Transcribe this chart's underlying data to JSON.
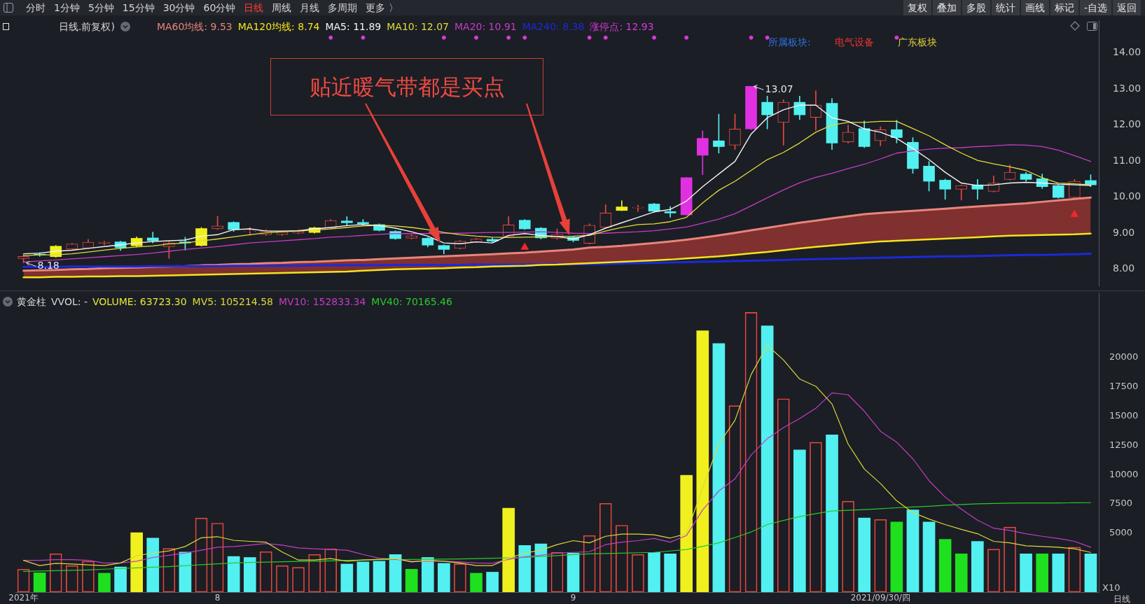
{
  "chart_data": [
    {
      "type": "other",
      "annotations": [
        "分时",
        "1分钟",
        "5分钟",
        "15分钟",
        "30分钟",
        "60分钟",
        "日线",
        "周线",
        "月线",
        "多周期",
        "更多 〉"
      ]
    },
    {
      "type": "other",
      "annotations": [
        "复权",
        "叠加",
        "多股",
        "统计",
        "画线",
        "标记",
        "-自选",
        "返回"
      ]
    },
    {
      "type": "candlestick",
      "title": "日线.前复权)",
      "categories": [
        null,
        null,
        null,
        null,
        null,
        null,
        null,
        null,
        null,
        null,
        null,
        null,
        null,
        null,
        null,
        null,
        null,
        null,
        null,
        null,
        null,
        null,
        null,
        null,
        null,
        null,
        null,
        null,
        null,
        null,
        null,
        null,
        null,
        null,
        null,
        null,
        null,
        null,
        null,
        null,
        null,
        null,
        null,
        null,
        null,
        null,
        null,
        null,
        null,
        null,
        null,
        null,
        null,
        null,
        null,
        null,
        null,
        null,
        null,
        null,
        null,
        null,
        null,
        null,
        null,
        null,
        null
      ],
      "series": [
        {
          "type": "candlestick",
          "color": "#e8483f",
          "colors": [
            "#e8483f",
            "#52f0f0",
            "#f0f01e",
            "#e8483f",
            "#e8483f",
            "#e8483f",
            "#52f0f0",
            "#f0f01e",
            "#52f0f0",
            "#e8483f",
            "#52f0f0",
            "#f0f01e",
            "#e8483f",
            "#52f0f0",
            "#e8483f",
            "#e8483f",
            "#e8483f",
            "#e8483f",
            "#f0f01e",
            "#e8483f",
            "#52f0f0",
            "#52f0f0",
            "#52f0f0",
            "#52f0f0",
            "#e8483f",
            "#52f0f0",
            "#52f0f0",
            "#e8483f",
            "#e8483f",
            "#52f0f0",
            "#e8483f",
            "#52f0f0",
            "#52f0f0",
            "#e8483f",
            "#52f0f0",
            "#e8483f",
            "#e8483f",
            "#f0f01e",
            "#e8483f",
            "#52f0f0",
            "#52f0f0",
            "#e030e0",
            "#e030e0",
            "#52f0f0",
            "#e8483f",
            "#e030e0",
            "#52f0f0",
            "#e8483f",
            "#52f0f0",
            "#e8483f",
            "#52f0f0",
            "#e8483f",
            "#52f0f0",
            "#e8483f",
            "#52f0f0",
            "#52f0f0",
            "#52f0f0",
            "#52f0f0",
            "#e8483f",
            "#52f0f0",
            "#e8483f",
            "#e8483f",
            "#52f0f0",
            "#52f0f0",
            "#52f0f0",
            "#e8483f",
            "#52f0f0"
          ],
          "ohlc": [
            [
              8.3,
              8.4,
              8.18,
              8.36
            ],
            [
              8.42,
              8.46,
              8.36,
              8.4
            ],
            [
              8.35,
              8.66,
              8.33,
              8.64
            ],
            [
              8.56,
              8.72,
              8.55,
              8.7
            ],
            [
              8.59,
              8.83,
              8.58,
              8.75
            ],
            [
              8.72,
              8.78,
              8.68,
              8.75
            ],
            [
              8.76,
              8.78,
              8.52,
              8.6
            ],
            [
              8.65,
              8.9,
              8.62,
              8.86
            ],
            [
              8.87,
              9.03,
              8.73,
              8.79
            ],
            [
              8.63,
              8.76,
              8.3,
              8.73
            ],
            [
              8.76,
              8.89,
              8.53,
              8.73
            ],
            [
              8.66,
              9.16,
              8.64,
              9.13
            ],
            [
              9.12,
              9.47,
              9.1,
              9.2
            ],
            [
              9.3,
              9.32,
              9.05,
              9.1
            ],
            [
              9.05,
              9.16,
              8.94,
              9.06
            ],
            [
              8.96,
              9.1,
              8.94,
              9.06
            ],
            [
              8.96,
              9.06,
              8.94,
              9.03
            ],
            [
              9.0,
              9.09,
              8.98,
              9.06
            ],
            [
              9.02,
              9.17,
              9.0,
              9.15
            ],
            [
              9.14,
              9.38,
              9.12,
              9.35
            ],
            [
              9.34,
              9.46,
              9.21,
              9.29
            ],
            [
              9.3,
              9.38,
              9.22,
              9.26
            ],
            [
              9.24,
              9.26,
              9.06,
              9.08
            ],
            [
              9.05,
              9.07,
              8.83,
              8.85
            ],
            [
              8.86,
              8.96,
              8.84,
              8.93
            ],
            [
              8.86,
              8.88,
              8.62,
              8.67
            ],
            [
              8.66,
              8.68,
              8.43,
              8.55
            ],
            [
              8.58,
              8.8,
              8.56,
              8.78
            ],
            [
              8.76,
              8.86,
              8.74,
              8.84
            ],
            [
              8.83,
              8.87,
              8.76,
              8.78
            ],
            [
              8.92,
              9.46,
              8.9,
              9.23
            ],
            [
              9.36,
              9.38,
              9.1,
              9.12
            ],
            [
              9.14,
              9.16,
              8.84,
              8.87
            ],
            [
              8.86,
              9.12,
              8.83,
              8.97
            ],
            [
              8.89,
              8.92,
              8.76,
              8.8
            ],
            [
              8.72,
              9.26,
              8.7,
              9.22
            ],
            [
              9.16,
              9.79,
              9.15,
              9.56
            ],
            [
              9.63,
              9.9,
              9.62,
              9.73
            ],
            [
              9.7,
              9.78,
              9.6,
              9.72
            ],
            [
              9.81,
              9.83,
              9.58,
              9.61
            ],
            [
              9.6,
              9.74,
              9.44,
              9.56
            ],
            [
              9.51,
              10.55,
              9.5,
              10.54
            ],
            [
              11.16,
              11.84,
              10.62,
              11.63
            ],
            [
              11.56,
              12.3,
              11.22,
              11.4
            ],
            [
              11.44,
              12.3,
              11.32,
              11.89
            ],
            [
              11.89,
              13.07,
              11.87,
              13.07
            ],
            [
              12.63,
              12.8,
              11.89,
              12.28
            ],
            [
              12.07,
              12.7,
              11.44,
              12.63
            ],
            [
              12.63,
              12.8,
              12.15,
              12.28
            ],
            [
              12.21,
              12.95,
              11.85,
              12.55
            ],
            [
              12.6,
              12.73,
              11.32,
              11.5
            ],
            [
              11.53,
              12.0,
              11.5,
              11.8
            ],
            [
              11.9,
              12.11,
              11.37,
              11.4
            ],
            [
              11.56,
              11.95,
              11.42,
              11.87
            ],
            [
              11.87,
              12.13,
              11.5,
              11.65
            ],
            [
              11.52,
              11.65,
              10.66,
              10.79
            ],
            [
              10.86,
              10.99,
              10.17,
              10.44
            ],
            [
              10.47,
              10.5,
              9.94,
              10.22
            ],
            [
              10.22,
              10.34,
              9.92,
              10.32
            ],
            [
              10.34,
              10.49,
              9.94,
              10.22
            ],
            [
              10.16,
              10.59,
              10.14,
              10.39
            ],
            [
              10.49,
              10.89,
              10.47,
              10.69
            ],
            [
              10.64,
              10.69,
              10.44,
              10.49
            ],
            [
              10.51,
              10.64,
              10.24,
              10.29
            ],
            [
              10.32,
              10.34,
              9.97,
              9.99
            ],
            [
              9.99,
              10.49,
              9.97,
              10.44
            ],
            [
              10.46,
              10.62,
              10.29,
              10.34
            ]
          ],
          "value_labels": [
            "8.18",
            null,
            null,
            null,
            null,
            null,
            null,
            null,
            null,
            null,
            null,
            null,
            null,
            null,
            null,
            null,
            null,
            null,
            null,
            null,
            null,
            null,
            null,
            null,
            null,
            null,
            null,
            null,
            null,
            null,
            null,
            null,
            null,
            null,
            null,
            null,
            null,
            null,
            null,
            null,
            null,
            null,
            null,
            null,
            null,
            "13.07",
            null,
            null,
            null,
            null,
            null,
            null,
            null,
            null,
            null,
            null,
            null,
            null,
            null,
            null,
            null,
            null,
            null,
            null,
            null,
            null,
            null
          ]
        },
        {
          "type": "area",
          "name": "MA60均线: 9.53",
          "color": "#e8857c",
          "values": [
            7.96,
            7.97,
            7.98,
            8.0,
            8.01,
            8.03,
            8.04,
            8.05,
            8.07,
            8.08,
            8.09,
            8.11,
            8.12,
            8.14,
            8.15,
            8.17,
            8.18,
            8.2,
            8.21,
            8.23,
            8.25,
            8.26,
            8.28,
            8.3,
            8.32,
            8.34,
            8.36,
            8.38,
            8.4,
            8.42,
            8.44,
            8.46,
            8.49,
            8.52,
            8.55,
            8.6,
            8.62,
            8.65,
            8.69,
            8.73,
            8.77,
            8.82,
            8.88,
            8.94,
            9.01,
            9.08,
            9.15,
            9.22,
            9.29,
            9.35,
            9.41,
            9.47,
            9.53,
            9.56,
            9.59,
            9.62,
            9.65,
            9.68,
            9.71,
            9.74,
            9.77,
            9.8,
            9.83,
            9.87,
            9.91,
            9.95,
            9.99
          ]
        },
        {
          "type": "line",
          "name": "MA120均线: 8.74",
          "color": "#f2e41c",
          "values": [
            7.78,
            7.78,
            7.79,
            7.79,
            7.8,
            7.8,
            7.81,
            7.81,
            7.82,
            7.83,
            7.84,
            7.85,
            7.86,
            7.87,
            7.88,
            7.89,
            7.9,
            7.91,
            7.92,
            7.93,
            7.94,
            7.96,
            7.98,
            8.0,
            8.01,
            8.02,
            8.03,
            8.05,
            8.06,
            8.08,
            8.09,
            8.1,
            8.12,
            8.13,
            8.15,
            8.17,
            8.19,
            8.21,
            8.23,
            8.25,
            8.27,
            8.3,
            8.33,
            8.36,
            8.4,
            8.44,
            8.48,
            8.53,
            8.58,
            8.62,
            8.66,
            8.7,
            8.74,
            8.77,
            8.79,
            8.81,
            8.83,
            8.85,
            8.87,
            8.89,
            8.91,
            8.93,
            8.94,
            8.95,
            8.96,
            8.97,
            8.99
          ]
        },
        {
          "type": "line",
          "name": "MA5: 11.89",
          "color": "#f4f4f4",
          "values": [
            8.43,
            8.45,
            8.5,
            8.53,
            8.58,
            8.63,
            8.68,
            8.73,
            8.77,
            8.79,
            8.81,
            8.92,
            8.96,
            9.1,
            9.12,
            9.06,
            9.06,
            9.07,
            9.12,
            9.16,
            9.21,
            9.24,
            9.21,
            9.14,
            9.04,
            8.92,
            8.73,
            8.71,
            8.76,
            8.73,
            8.94,
            8.99,
            8.94,
            8.91,
            8.84,
            8.96,
            9.14,
            9.29,
            9.44,
            9.59,
            9.66,
            9.89,
            10.29,
            10.64,
            10.99,
            11.75,
            12.2,
            12.42,
            12.55,
            12.55,
            12.2,
            12.1,
            11.89,
            11.8,
            11.63,
            11.35,
            11.04,
            10.69,
            10.39,
            10.32,
            10.34,
            10.39,
            10.41,
            10.39,
            10.36,
            10.34,
            10.32
          ]
        },
        {
          "type": "line",
          "name": "MA10: 12.07",
          "color": "#e0dc3c",
          "values": [
            8.38,
            8.4,
            8.4,
            8.43,
            8.48,
            8.53,
            8.58,
            8.62,
            8.65,
            8.7,
            8.73,
            8.79,
            8.84,
            8.9,
            8.96,
            9.01,
            9.04,
            9.06,
            9.09,
            9.12,
            9.16,
            9.2,
            9.22,
            9.2,
            9.16,
            9.1,
            9.02,
            8.96,
            8.92,
            8.89,
            8.88,
            8.89,
            8.9,
            8.91,
            8.92,
            8.94,
            9.06,
            9.16,
            9.24,
            9.26,
            9.32,
            9.44,
            9.84,
            10.19,
            10.44,
            10.74,
            11.04,
            11.24,
            11.5,
            11.8,
            12.0,
            12.07,
            12.07,
            12.1,
            12.1,
            11.9,
            11.7,
            11.45,
            11.22,
            11.02,
            10.92,
            10.84,
            10.74,
            10.54,
            10.39,
            10.37,
            10.34
          ]
        },
        {
          "type": "line",
          "name": "MA20: 10.91",
          "color": "#c63cc6",
          "values": [
            8.2,
            8.23,
            8.26,
            8.29,
            8.32,
            8.35,
            8.38,
            8.41,
            8.45,
            8.5,
            8.55,
            8.59,
            8.63,
            8.68,
            8.73,
            8.76,
            8.79,
            8.82,
            8.85,
            8.89,
            8.91,
            8.94,
            8.97,
            8.99,
            8.99,
            8.99,
            9.0,
            9.0,
            9.01,
            9.02,
            9.02,
            9.03,
            9.04,
            9.02,
            9.0,
            8.99,
            9.0,
            9.02,
            9.04,
            9.07,
            9.12,
            9.17,
            9.28,
            9.39,
            9.54,
            9.76,
            9.98,
            10.2,
            10.4,
            10.55,
            10.66,
            10.79,
            10.91,
            11.06,
            11.22,
            11.28,
            11.33,
            11.36,
            11.37,
            11.4,
            11.42,
            11.45,
            11.44,
            11.4,
            11.3,
            11.15,
            10.99
          ]
        },
        {
          "type": "line",
          "name": "MA240: 8.38",
          "color": "#1c2ad8",
          "values": [
            8.07,
            8.07,
            8.07,
            8.08,
            8.08,
            8.08,
            8.08,
            8.08,
            8.09,
            8.09,
            8.09,
            8.09,
            8.09,
            8.1,
            8.1,
            8.1,
            8.1,
            8.1,
            8.11,
            8.11,
            8.11,
            8.11,
            8.11,
            8.12,
            8.12,
            8.12,
            8.12,
            8.12,
            8.13,
            8.13,
            8.13,
            8.13,
            8.14,
            8.14,
            8.14,
            8.14,
            8.15,
            8.16,
            8.17,
            8.18,
            8.19,
            8.2,
            8.21,
            8.22,
            8.23,
            8.24,
            8.25,
            8.26,
            8.27,
            8.28,
            8.29,
            8.3,
            8.31,
            8.32,
            8.33,
            8.34,
            8.35,
            8.36,
            8.36,
            8.37,
            8.38,
            8.39,
            8.4,
            8.4,
            8.41,
            8.42,
            8.43
          ]
        },
        {
          "type": "scatter",
          "name": "涨停点: 12.93",
          "color": "#d838d8",
          "marker": "circle",
          "values": [
            null,
            null,
            null,
            null,
            null,
            null,
            null,
            null,
            null,
            null,
            null,
            null,
            null,
            null,
            null,
            null,
            null,
            null,
            null,
            14.42,
            null,
            14.42,
            null,
            null,
            null,
            null,
            14.42,
            null,
            14.42,
            null,
            14.42,
            14.42,
            null,
            null,
            null,
            14.42,
            14.42,
            null,
            null,
            14.42,
            null,
            14.42,
            null,
            null,
            null,
            14.42,
            14.42,
            null,
            null,
            null,
            null,
            null,
            null,
            null,
            14.42,
            null,
            null,
            null,
            null,
            null,
            null,
            null,
            null,
            null,
            null,
            null,
            null
          ]
        },
        {
          "type": "scatter",
          "color": "#f02828",
          "marker": "triangle",
          "values": [
            null,
            null,
            null,
            null,
            null,
            null,
            null,
            null,
            null,
            null,
            null,
            null,
            null,
            null,
            null,
            null,
            null,
            null,
            null,
            null,
            null,
            null,
            null,
            null,
            null,
            null,
            null,
            null,
            null,
            null,
            null,
            8.61,
            null,
            null,
            null,
            null,
            null,
            null,
            null,
            null,
            null,
            null,
            null,
            null,
            null,
            null,
            null,
            null,
            null,
            null,
            null,
            null,
            null,
            null,
            null,
            null,
            null,
            null,
            null,
            null,
            null,
            null,
            null,
            null,
            null,
            9.52,
            null
          ]
        }
      ],
      "ylim": [
        7.55,
        14.9
      ],
      "yticks": [
        {
          "value": 8,
          "label": "8.00"
        },
        {
          "value": 9,
          "label": "9.00"
        },
        {
          "value": 10,
          "label": "10.00"
        },
        {
          "value": 11,
          "label": "11.00"
        },
        {
          "value": 12,
          "label": "12.00"
        },
        {
          "value": 13,
          "label": "13.00"
        },
        {
          "value": 14,
          "label": "14.00"
        }
      ],
      "tick_labels": "y",
      "legend": "top left",
      "annotations": [
        "贴近暖气带都是买点",
        "所属板块:",
        "电气设备",
        "广东板块"
      ]
    },
    {
      "type": "bar",
      "title": "黄金柱",
      "subtitle": "VVOL: -",
      "ylabel": "X10",
      "categories": [
        "2021年",
        null,
        null,
        null,
        null,
        null,
        null,
        null,
        null,
        null,
        null,
        null,
        "8",
        null,
        null,
        null,
        null,
        null,
        null,
        null,
        null,
        null,
        null,
        null,
        null,
        null,
        null,
        null,
        null,
        null,
        null,
        null,
        null,
        null,
        "9",
        null,
        null,
        null,
        null,
        null,
        null,
        null,
        null,
        null,
        null,
        null,
        null,
        null,
        null,
        null,
        null,
        null,
        null,
        "2021/09/30/四",
        null,
        null,
        null,
        null,
        null,
        null,
        null,
        null,
        null,
        null,
        null,
        null,
        null
      ],
      "series": [
        {
          "type": "bar",
          "color": "#e8483f",
          "colors": [
            "#e8483f",
            "#1ee01e",
            "#e8483f",
            "#e8483f",
            "#e8483f",
            "#1ee01e",
            "#52f0f0",
            "#f0f01e",
            "#52f0f0",
            "#e8483f",
            "#52f0f0",
            "#e8483f",
            "#e8483f",
            "#52f0f0",
            "#52f0f0",
            "#e8483f",
            "#e8483f",
            "#e8483f",
            "#e8483f",
            "#e8483f",
            "#52f0f0",
            "#52f0f0",
            "#52f0f0",
            "#52f0f0",
            "#1ee01e",
            "#52f0f0",
            "#52f0f0",
            "#e8483f",
            "#1ee01e",
            "#52f0f0",
            "#f0f01e",
            "#52f0f0",
            "#52f0f0",
            "#e8483f",
            "#52f0f0",
            "#e8483f",
            "#e8483f",
            "#e8483f",
            "#e8483f",
            "#52f0f0",
            "#52f0f0",
            "#f0f01e",
            "#f0f01e",
            "#52f0f0",
            "#e8483f",
            "#e8483f",
            "#52f0f0",
            "#e8483f",
            "#52f0f0",
            "#e8483f",
            "#52f0f0",
            "#e8483f",
            "#52f0f0",
            "#e8483f",
            "#1ee01e",
            "#52f0f0",
            "#52f0f0",
            "#1ee01e",
            "#1ee01e",
            "#52f0f0",
            "#e8483f",
            "#e8483f",
            "#52f0f0",
            "#1ee01e",
            "#52f0f0",
            "#e8483f",
            "#52f0f0"
          ],
          "values": [
            1950,
            1640,
            3260,
            2260,
            2630,
            1610,
            2140,
            5060,
            4600,
            3720,
            3410,
            6310,
            5870,
            3040,
            2950,
            3440,
            2260,
            2110,
            3200,
            3690,
            2390,
            2570,
            2630,
            3200,
            1950,
            2950,
            2450,
            2420,
            1610,
            1700,
            7150,
            3970,
            4100,
            3380,
            3320,
            4810,
            7550,
            5690,
            3200,
            3380,
            3260,
            9950,
            22250,
            21160,
            15870,
            23810,
            22660,
            16460,
            12100,
            12760,
            13380,
            7740,
            6310,
            6180,
            5970,
            6990,
            5970,
            4500,
            3260,
            4320,
            3660,
            5530,
            3260,
            3260,
            3260,
            3820,
            3260
          ]
        },
        {
          "type": "line",
          "name": "MV5: 105214.58",
          "color": "#dcd83a",
          "values": [
            2700,
            2260,
            2450,
            2390,
            2320,
            2260,
            2480,
            3100,
            3320,
            3510,
            3880,
            4630,
            4720,
            4410,
            4320,
            4250,
            3410,
            2730,
            2730,
            2850,
            2630,
            2730,
            2790,
            2850,
            2570,
            2700,
            2630,
            2480,
            2260,
            2260,
            2880,
            3320,
            3570,
            4040,
            4380,
            4190,
            4750,
            4940,
            4940,
            4880,
            4600,
            4970,
            8860,
            12600,
            14620,
            18520,
            21010,
            19760,
            18140,
            17520,
            16020,
            12600,
            10480,
            9240,
            7770,
            6780,
            6220,
            5750,
            5340,
            4970,
            4320,
            4190,
            3940,
            3880,
            3820,
            3690,
            3380
          ]
        },
        {
          "type": "line",
          "name": "MV10: 152833.34",
          "color": "#c43cc4",
          "values": [
            2700,
            2700,
            2760,
            2760,
            2700,
            2480,
            2480,
            2630,
            2950,
            3130,
            3320,
            3570,
            3820,
            3880,
            4000,
            4130,
            4000,
            3760,
            3690,
            3630,
            3570,
            3200,
            2880,
            2790,
            2630,
            2630,
            2630,
            2570,
            2480,
            2450,
            2790,
            3010,
            3130,
            3320,
            3380,
            3440,
            4040,
            4250,
            4380,
            4570,
            4250,
            4810,
            6990,
            8610,
            9640,
            11670,
            13070,
            14000,
            14780,
            15650,
            16960,
            16800,
            15400,
            13690,
            12760,
            11350,
            9490,
            8080,
            7060,
            6120,
            5440,
            5250,
            4970,
            4750,
            4570,
            4320,
            3820
          ]
        },
        {
          "type": "line",
          "name": "MV40: 70165.46",
          "color": "#2cc82c",
          "values": [
            1760,
            1790,
            1820,
            1860,
            1890,
            1950,
            2010,
            2060,
            2120,
            2170,
            2250,
            2330,
            2410,
            2480,
            2520,
            2550,
            2580,
            2610,
            2630,
            2660,
            2700,
            2730,
            2760,
            2770,
            2780,
            2790,
            2810,
            2820,
            2850,
            2880,
            2920,
            2950,
            3030,
            3110,
            3200,
            3260,
            3290,
            3320,
            3350,
            3380,
            3500,
            3630,
            3900,
            4190,
            4650,
            5120,
            5750,
            6100,
            6430,
            6680,
            6900,
            6960,
            7020,
            7100,
            7180,
            7250,
            7310,
            7390,
            7460,
            7510,
            7550,
            7570,
            7590,
            7590,
            7590,
            7600,
            7610
          ]
        }
      ],
      "ylim": [
        0,
        25500
      ],
      "yticks": [
        5000,
        7500,
        10000,
        12500,
        15000,
        17500,
        20000
      ],
      "legend": "top left",
      "annotations": [
        "VOLUME: 63723.30",
        "日线"
      ]
    }
  ]
}
